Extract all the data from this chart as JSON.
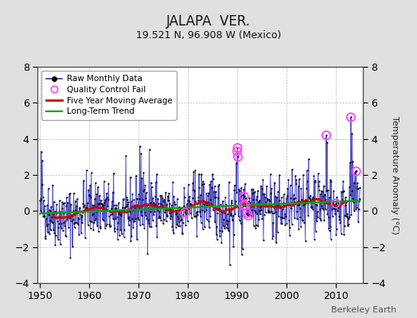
{
  "title": "JALAPA  VER.",
  "subtitle": "19.521 N, 96.908 W (Mexico)",
  "ylabel": "Temperature Anomaly (°C)",
  "watermark": "Berkeley Earth",
  "ylim": [
    -4,
    8
  ],
  "xlim": [
    1949.5,
    2015.5
  ],
  "xticks": [
    1950,
    1960,
    1970,
    1980,
    1990,
    2000,
    2010
  ],
  "yticks": [
    -4,
    -2,
    0,
    2,
    4,
    6,
    8
  ],
  "background_color": "#e0e0e0",
  "plot_bg_color": "#ffffff",
  "raw_line_color": "#3333bb",
  "raw_marker_color": "#000000",
  "moving_avg_color": "#cc0000",
  "trend_color": "#00aa00",
  "qc_fail_color": "#ff44ff",
  "seed": 42,
  "n_years": 65,
  "start_year": 1950,
  "title_fontsize": 12,
  "subtitle_fontsize": 9,
  "tick_fontsize": 9,
  "ylabel_fontsize": 8,
  "watermark_fontsize": 8,
  "legend_fontsize": 7.5
}
